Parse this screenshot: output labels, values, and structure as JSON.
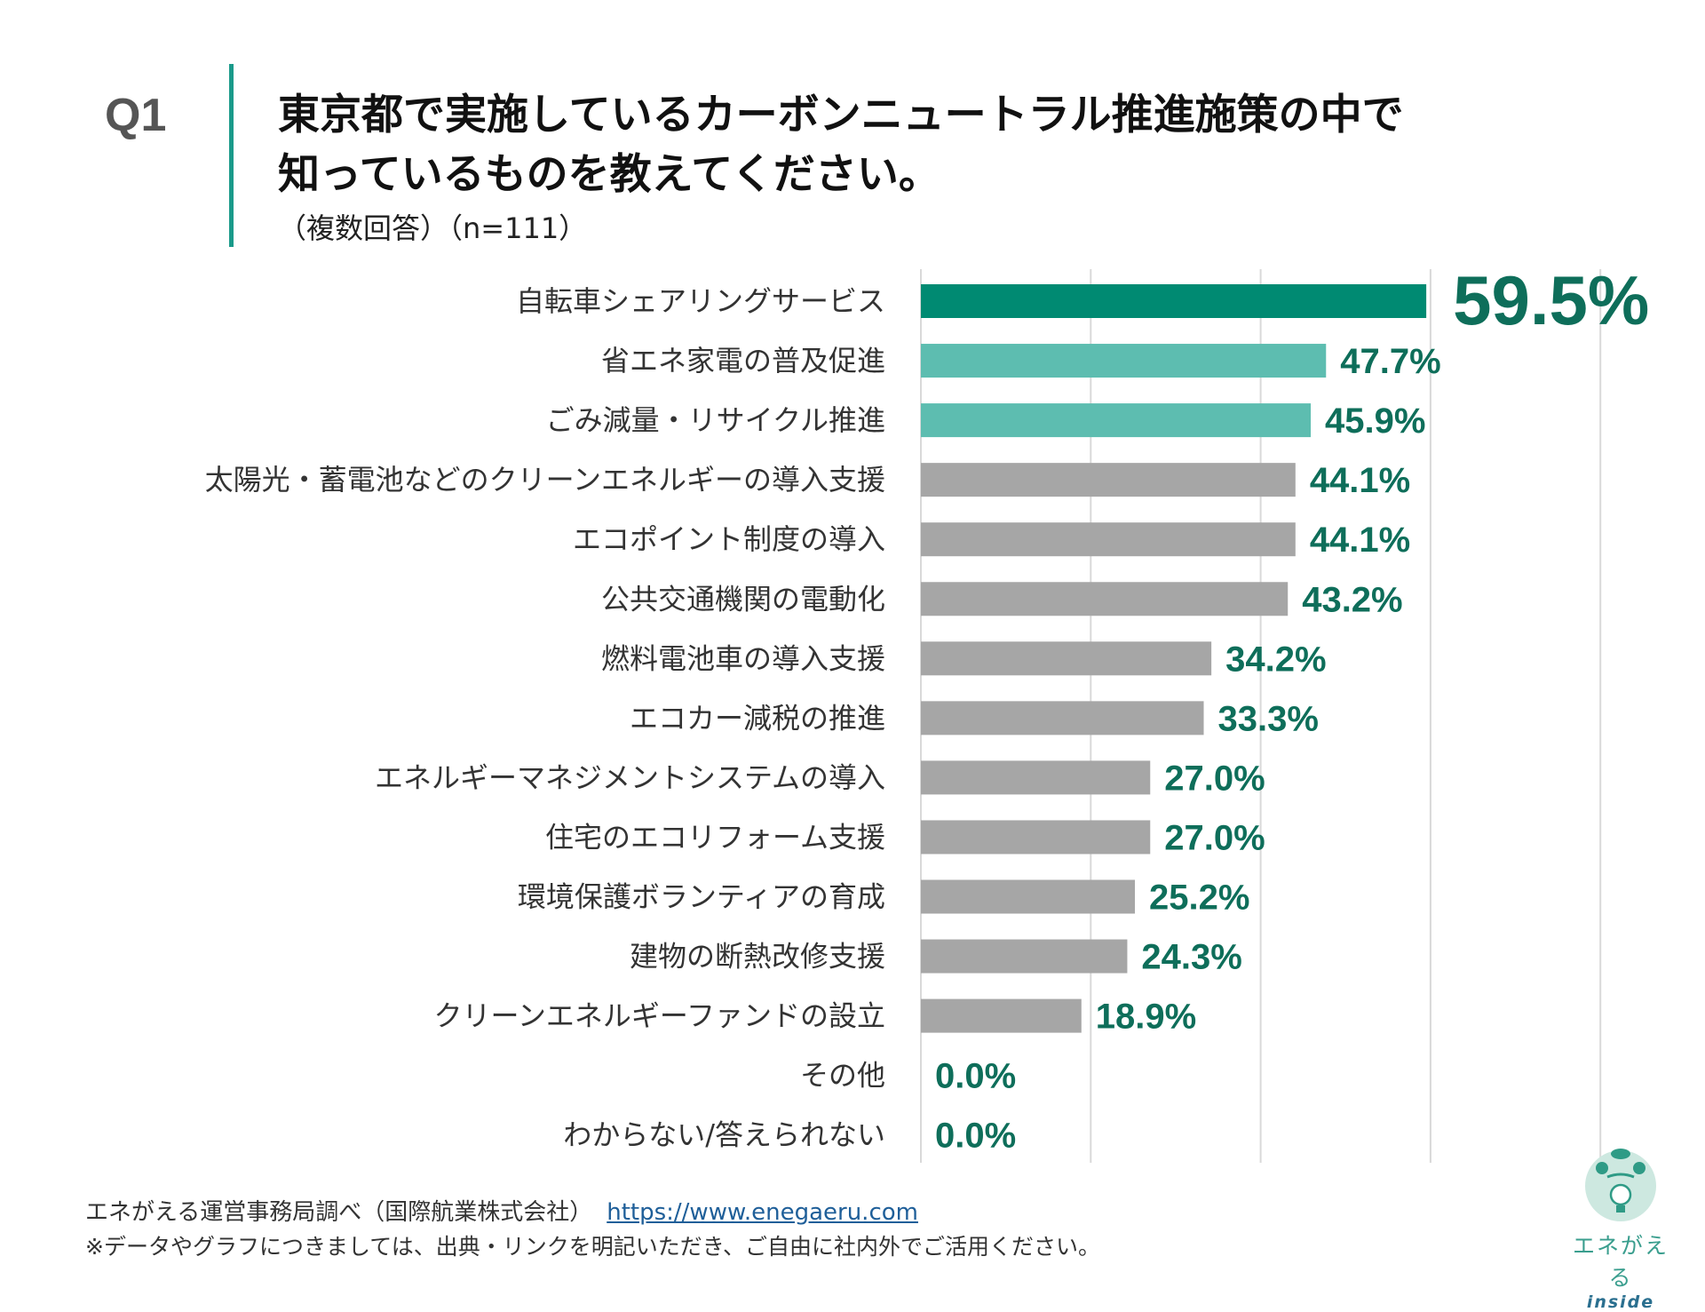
{
  "question": {
    "number": "Q1",
    "title_line1": "東京都で実施しているカーボンニュートラル推進施策の中で",
    "title_line2": "知っているものを教えてください。",
    "subtitle": "（複数回答）（n=111）"
  },
  "chart_data": {
    "type": "bar",
    "orientation": "horizontal",
    "categories": [
      "自転車シェアリングサービス",
      "省エネ家電の普及促進",
      "ごみ減量・リサイクル推進",
      "太陽光・蓄電池などのクリーンエネルギーの導入支援",
      "エコポイント制度の導入",
      "公共交通機関の電動化",
      "燃料電池車の導入支援",
      "エコカー減税の推進",
      "エネルギーマネジメントシステムの導入",
      "住宅のエコリフォーム支援",
      "環境保護ボランティアの育成",
      "建物の断熱改修支援",
      "クリーンエネルギーファンドの設立",
      "その他",
      "わからない/答えられない"
    ],
    "values": [
      59.5,
      47.7,
      45.9,
      44.1,
      44.1,
      43.2,
      34.2,
      33.3,
      27.0,
      27.0,
      25.2,
      24.3,
      18.9,
      0.0,
      0.0
    ],
    "data_labels": [
      "59.5%",
      "47.7%",
      "45.9%",
      "44.1%",
      "44.1%",
      "43.2%",
      "34.2%",
      "33.3%",
      "27.0%",
      "27.0%",
      "25.2%",
      "24.3%",
      "18.9%",
      "0.0%",
      "0.0%"
    ],
    "bar_colors": [
      "#008a72",
      "#5dbdb0",
      "#5dbdb0",
      "#a6a6a6",
      "#a6a6a6",
      "#a6a6a6",
      "#a6a6a6",
      "#a6a6a6",
      "#a6a6a6",
      "#a6a6a6",
      "#a6a6a6",
      "#a6a6a6",
      "#a6a6a6",
      "#a6a6a6",
      "#a6a6a6"
    ],
    "label_color": "#0e6e5a",
    "xlim": [
      0,
      80
    ],
    "grid_step": 20,
    "grid": true,
    "xlabel": "",
    "ylabel": "",
    "title": ""
  },
  "footer": {
    "source": "エネがえる運営事務局調べ（国際航業株式会社）",
    "link": "https://www.enegaeru.com",
    "note": "※データやグラフにつきましては、出典・リンクを明記いただき、ご自由に社内外でご活用ください。"
  },
  "logo": {
    "text": "エネがえる",
    "sub": "inside"
  }
}
